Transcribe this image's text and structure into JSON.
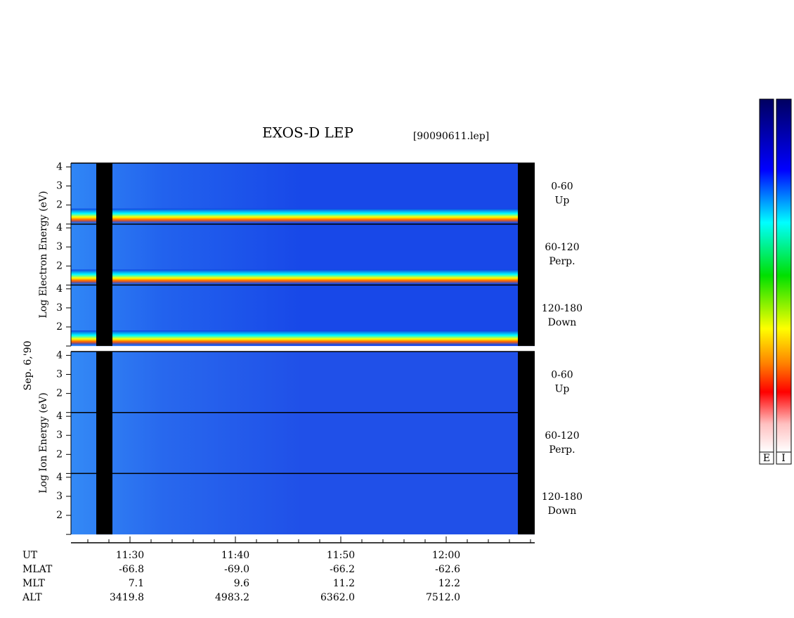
{
  "chart_data": {
    "type": "spectrogram",
    "title": "EXOS-D LEP",
    "file_label": "[90090611.lep]",
    "date_label": "Sep. 6,'90",
    "ylim": [
      1,
      4.2
    ],
    "yticks": [
      1,
      2,
      3,
      4
    ],
    "xlim": [
      24.4,
      68.4
    ],
    "xticks": [
      {
        "value": 30,
        "label": "11:30"
      },
      {
        "value": 40,
        "label": "11:40"
      },
      {
        "value": 50,
        "label": "11:50"
      },
      {
        "value": 60,
        "label": "12:00"
      }
    ],
    "panels": [
      {
        "ylabel": "Log Electron Energy (eV)",
        "channels": [
          {
            "angle": "0-60",
            "direction": "Up"
          },
          {
            "angle": "60-120",
            "direction": "Perp."
          },
          {
            "angle": "120-180",
            "direction": "Down"
          }
        ]
      },
      {
        "ylabel": "Log Ion Energy (eV)",
        "channels": [
          {
            "angle": "0-60",
            "direction": "Up"
          },
          {
            "angle": "60-120",
            "direction": "Perp."
          },
          {
            "angle": "120-180",
            "direction": "Down"
          }
        ]
      }
    ],
    "orbit_table": {
      "row_labels": [
        "UT",
        "MLAT",
        "MLT",
        "ALT"
      ],
      "rows": [
        [
          "-66.8",
          "-69.0",
          "-66.2",
          "-62.6"
        ],
        [
          "7.1",
          "9.6",
          "11.2",
          "12.2"
        ],
        [
          "3419.8",
          "4983.2",
          "6362.0",
          "7512.0"
        ]
      ]
    },
    "colorbar_labels": [
      "E",
      "I"
    ]
  }
}
